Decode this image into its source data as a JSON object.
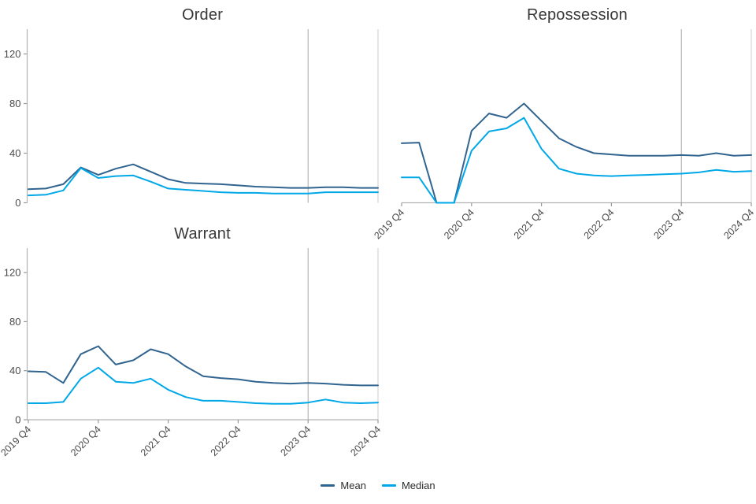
{
  "figure": {
    "background": "#ffffff"
  },
  "colors": {
    "mean_line": "#31648F",
    "median_line": "#00A8E8",
    "axis_line": "#B3B3B3",
    "tick_mark": "#9A9A9A",
    "tick_text": "#4A4A4A",
    "title_text": "#383838",
    "ref_line_2023": "#A6A6A6",
    "ref_line_2024": "#CCCCCC"
  },
  "legend": {
    "items": [
      {
        "label": "Mean",
        "color": "#31648F"
      },
      {
        "label": "Median",
        "color": "#00A8E8"
      }
    ]
  },
  "chart_data": [
    {
      "id": "order",
      "type": "line",
      "title": "Order",
      "x": [
        "2019 Q4",
        "2020 Q1",
        "2020 Q2",
        "2020 Q3",
        "2020 Q4",
        "2021 Q1",
        "2021 Q2",
        "2021 Q3",
        "2021 Q4",
        "2022 Q1",
        "2022 Q2",
        "2022 Q3",
        "2022 Q4",
        "2023 Q1",
        "2023 Q2",
        "2023 Q3",
        "2023 Q4",
        "2024 Q1",
        "2024 Q2",
        "2024 Q3",
        "2024 Q4"
      ],
      "x_tick_labels": [
        "2019 Q4",
        "2020 Q4",
        "2021 Q4",
        "2022 Q4",
        "2023 Q4",
        "2024 Q4"
      ],
      "x_tick_indices": [
        0,
        4,
        8,
        12,
        16,
        20
      ],
      "y_ticks": [
        0,
        40,
        80,
        120
      ],
      "ylim": [
        0,
        140
      ],
      "show_y_axis": true,
      "show_x_axis": false,
      "grid": "off",
      "ref_lines": [
        {
          "index": 16,
          "color": "#A6A6A6"
        },
        {
          "index": 20,
          "color": "#CCCCCC"
        }
      ],
      "series": [
        {
          "name": "Mean",
          "color": "#31648F",
          "values": [
            11,
            11.5,
            15,
            28.5,
            22.5,
            27.5,
            31,
            25,
            19,
            16,
            15.5,
            15,
            14,
            13,
            12.5,
            12,
            12,
            12.5,
            12.5,
            12,
            12
          ]
        },
        {
          "name": "Median",
          "color": "#00A8E8",
          "values": [
            6,
            6.5,
            10,
            28,
            20,
            21.5,
            22,
            17,
            11.5,
            10.5,
            9.5,
            8.5,
            8,
            8,
            7.5,
            7.5,
            7.5,
            8.5,
            8.5,
            8.5,
            8.5
          ]
        }
      ]
    },
    {
      "id": "repossession",
      "type": "line",
      "title": "Repossession",
      "x": [
        "2019 Q4",
        "2020 Q1",
        "2020 Q2",
        "2020 Q3",
        "2020 Q4",
        "2021 Q1",
        "2021 Q2",
        "2021 Q3",
        "2021 Q4",
        "2022 Q1",
        "2022 Q2",
        "2022 Q3",
        "2022 Q4",
        "2023 Q1",
        "2023 Q2",
        "2023 Q3",
        "2023 Q4",
        "2024 Q1",
        "2024 Q2",
        "2024 Q3",
        "2024 Q4"
      ],
      "x_tick_labels": [
        "2019 Q4",
        "2020 Q4",
        "2021 Q4",
        "2022 Q4",
        "2023 Q4",
        "2024 Q4"
      ],
      "x_tick_indices": [
        0,
        4,
        8,
        12,
        16,
        20
      ],
      "y_ticks": [],
      "ylim": [
        0,
        140
      ],
      "show_y_axis": false,
      "show_x_axis": true,
      "grid": "off",
      "ref_lines": [
        {
          "index": 16,
          "color": "#A6A6A6"
        },
        {
          "index": 20,
          "color": "#CCCCCC"
        }
      ],
      "series": [
        {
          "name": "Mean",
          "color": "#31648F",
          "values": [
            48,
            48.5,
            0,
            0,
            58,
            72,
            68.5,
            80,
            66,
            52,
            45,
            40,
            39,
            38,
            38,
            38,
            38.5,
            38,
            40,
            38,
            38.5
          ]
        },
        {
          "name": "Median",
          "color": "#00A8E8",
          "values": [
            20.5,
            20.5,
            0,
            0,
            42,
            57.5,
            60,
            68.5,
            43.5,
            27.5,
            23.5,
            22,
            21.5,
            22,
            22.5,
            23,
            23.5,
            24.5,
            26.5,
            25,
            25.5
          ]
        }
      ]
    },
    {
      "id": "warrant",
      "type": "line",
      "title": "Warrant",
      "x": [
        "2019 Q4",
        "2020 Q1",
        "2020 Q2",
        "2020 Q3",
        "2020 Q4",
        "2021 Q1",
        "2021 Q2",
        "2021 Q3",
        "2021 Q4",
        "2022 Q1",
        "2022 Q2",
        "2022 Q3",
        "2022 Q4",
        "2023 Q1",
        "2023 Q2",
        "2023 Q3",
        "2023 Q4",
        "2024 Q1",
        "2024 Q2",
        "2024 Q3",
        "2024 Q4"
      ],
      "x_tick_labels": [
        "2019 Q4",
        "2020 Q4",
        "2021 Q4",
        "2022 Q4",
        "2023 Q4",
        "2024 Q4"
      ],
      "x_tick_indices": [
        0,
        4,
        8,
        12,
        16,
        20
      ],
      "y_ticks": [
        0,
        40,
        80,
        120
      ],
      "ylim": [
        0,
        140
      ],
      "show_y_axis": true,
      "show_x_axis": true,
      "grid": "off",
      "ref_lines": [
        {
          "index": 16,
          "color": "#A6A6A6"
        },
        {
          "index": 20,
          "color": "#CCCCCC"
        }
      ],
      "series": [
        {
          "name": "Mean",
          "color": "#31648F",
          "values": [
            39.5,
            39,
            30,
            53.5,
            60,
            45,
            48.5,
            57.5,
            53.5,
            43.5,
            35.5,
            34,
            33,
            31,
            30,
            29.5,
            30,
            29.5,
            28.5,
            28,
            28
          ]
        },
        {
          "name": "Median",
          "color": "#00A8E8",
          "values": [
            13.5,
            13.5,
            14.5,
            33.5,
            42.5,
            31,
            30,
            33.5,
            24.5,
            18.5,
            15.5,
            15.5,
            14.5,
            13.5,
            13,
            13,
            14,
            16.5,
            14,
            13.5,
            14
          ]
        }
      ]
    }
  ]
}
